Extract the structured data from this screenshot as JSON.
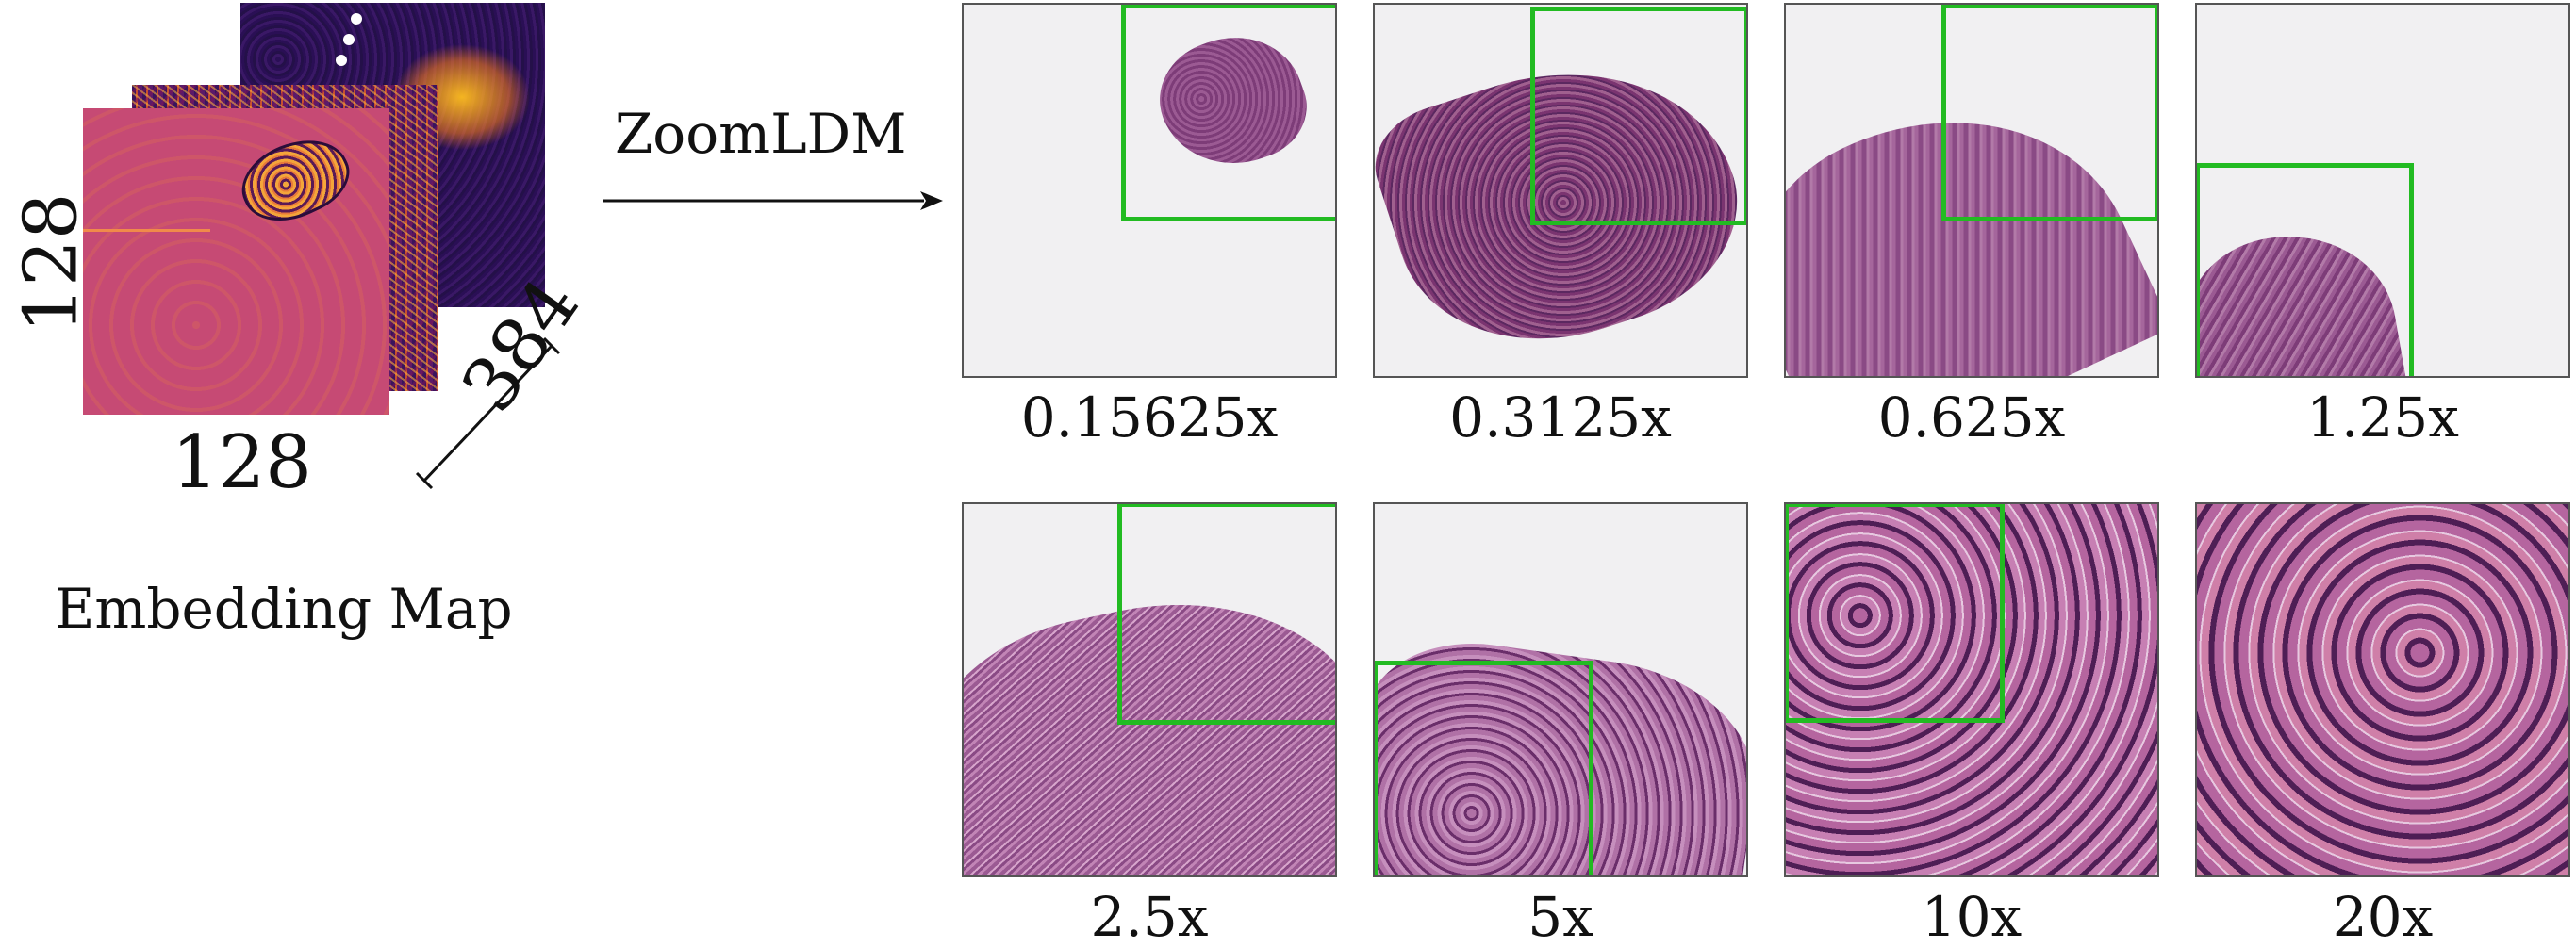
{
  "embedding": {
    "height_label": "128",
    "width_label": "128",
    "depth_label": "384",
    "caption": "Embedding Map"
  },
  "model_label": "ZoomLDM",
  "tiles": [
    {
      "label": "0.15625x"
    },
    {
      "label": "0.3125x"
    },
    {
      "label": "0.625x"
    },
    {
      "label": "1.25x"
    },
    {
      "label": "2.5x"
    },
    {
      "label": "5x"
    },
    {
      "label": "10x"
    },
    {
      "label": "20x"
    }
  ],
  "colors": {
    "zoom_box": "#22bb22",
    "tissue": "#9b4f8f",
    "tissue_dark": "#5a2660",
    "background": "#f1f0f2"
  }
}
